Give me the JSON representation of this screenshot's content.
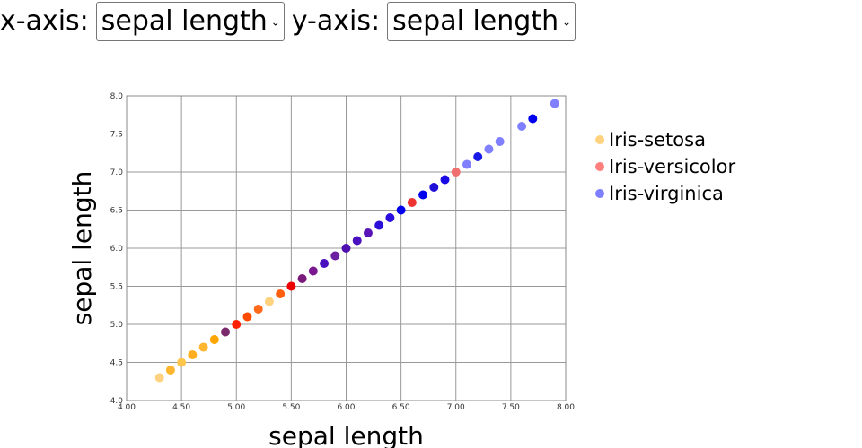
{
  "controls": {
    "x_label": "x-axis:",
    "x_selected": "sepal length",
    "y_label": "y-axis:",
    "y_selected": "sepal length"
  },
  "chart_data": {
    "type": "scatter",
    "xlabel": "sepal length",
    "ylabel": "sepal length",
    "xlim": [
      4.0,
      8.0
    ],
    "ylim": [
      4.0,
      8.0
    ],
    "x_ticks": [
      "4.00",
      "4.50",
      "5.00",
      "5.50",
      "6.00",
      "6.50",
      "7.00",
      "7.50",
      "8.00"
    ],
    "y_ticks": [
      "4.0",
      "4.5",
      "5.0",
      "5.5",
      "6.0",
      "6.5",
      "7.0",
      "7.5",
      "8.0"
    ],
    "grid": true,
    "legend_position": "right",
    "legend": [
      {
        "name": "Iris-setosa",
        "color": "#ffd27f"
      },
      {
        "name": "Iris-versicolor",
        "color": "#ff7f7f"
      },
      {
        "name": "Iris-virginica",
        "color": "#7f7fff"
      }
    ],
    "points": [
      {
        "x": 4.3,
        "y": 4.3,
        "color": "#ffd27f"
      },
      {
        "x": 4.4,
        "y": 4.4,
        "color": "#ffb52e"
      },
      {
        "x": 4.5,
        "y": 4.5,
        "color": "#ffc54d"
      },
      {
        "x": 4.6,
        "y": 4.6,
        "color": "#ffae1f"
      },
      {
        "x": 4.7,
        "y": 4.7,
        "color": "#ffb52e"
      },
      {
        "x": 4.8,
        "y": 4.8,
        "color": "#ffa500"
      },
      {
        "x": 4.9,
        "y": 4.9,
        "color": "#7a2a6a"
      },
      {
        "x": 5.0,
        "y": 5.0,
        "color": "#ff2200"
      },
      {
        "x": 5.1,
        "y": 5.1,
        "color": "#ff4a00"
      },
      {
        "x": 5.2,
        "y": 5.2,
        "color": "#ff6a1a"
      },
      {
        "x": 5.3,
        "y": 5.3,
        "color": "#ffd27f"
      },
      {
        "x": 5.4,
        "y": 5.4,
        "color": "#ff6010"
      },
      {
        "x": 5.5,
        "y": 5.5,
        "color": "#ee0000"
      },
      {
        "x": 5.6,
        "y": 5.6,
        "color": "#7a1a7a"
      },
      {
        "x": 5.7,
        "y": 5.7,
        "color": "#7a1890"
      },
      {
        "x": 5.8,
        "y": 5.8,
        "color": "#4a10c0"
      },
      {
        "x": 5.9,
        "y": 5.9,
        "color": "#6a20a0"
      },
      {
        "x": 6.0,
        "y": 6.0,
        "color": "#5010b0"
      },
      {
        "x": 6.1,
        "y": 6.1,
        "color": "#4a10c0"
      },
      {
        "x": 6.2,
        "y": 6.2,
        "color": "#5a14b8"
      },
      {
        "x": 6.3,
        "y": 6.3,
        "color": "#2a10d8"
      },
      {
        "x": 6.4,
        "y": 6.4,
        "color": "#2a0ee0"
      },
      {
        "x": 6.5,
        "y": 6.5,
        "color": "#0000ee"
      },
      {
        "x": 6.6,
        "y": 6.6,
        "color": "#ee3333"
      },
      {
        "x": 6.7,
        "y": 6.7,
        "color": "#0000ee"
      },
      {
        "x": 6.8,
        "y": 6.8,
        "color": "#2010d8"
      },
      {
        "x": 6.9,
        "y": 6.9,
        "color": "#1a0ae6"
      },
      {
        "x": 7.0,
        "y": 7.0,
        "color": "#f07070"
      },
      {
        "x": 7.1,
        "y": 7.1,
        "color": "#7f7fff"
      },
      {
        "x": 7.2,
        "y": 7.2,
        "color": "#1a1ae8"
      },
      {
        "x": 7.3,
        "y": 7.3,
        "color": "#7f7fff"
      },
      {
        "x": 7.4,
        "y": 7.4,
        "color": "#7f7fff"
      },
      {
        "x": 7.6,
        "y": 7.6,
        "color": "#7f7fff"
      },
      {
        "x": 7.7,
        "y": 7.7,
        "color": "#0000ee"
      },
      {
        "x": 7.9,
        "y": 7.9,
        "color": "#7f7fff"
      }
    ]
  }
}
